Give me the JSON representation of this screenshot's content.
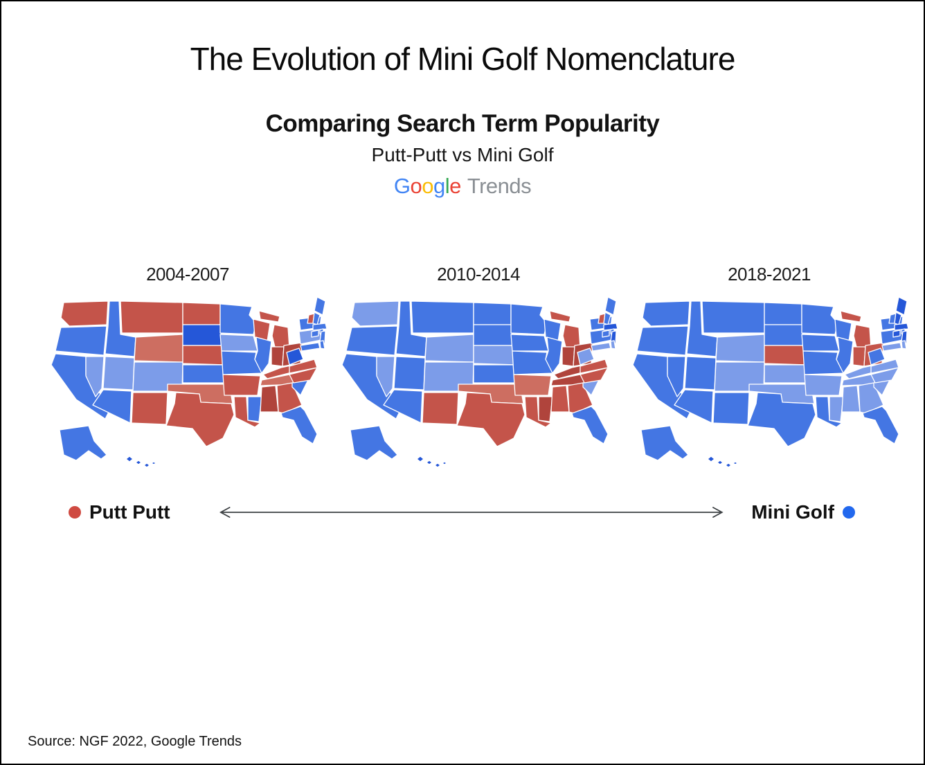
{
  "title": "The Evolution of Mini Golf Nomenclature",
  "subtitle": "Comparing Search Term Popularity",
  "subtitle2": "Putt-Putt vs Mini Golf",
  "logo": {
    "letters": [
      {
        "ch": "G",
        "color": "#4285F4"
      },
      {
        "ch": "o",
        "color": "#EA4335"
      },
      {
        "ch": "o",
        "color": "#FBBC05"
      },
      {
        "ch": "g",
        "color": "#4285F4"
      },
      {
        "ch": "l",
        "color": "#34A853"
      },
      {
        "ch": "e",
        "color": "#EA4335"
      }
    ],
    "suffix": "Trends",
    "suffix_color": "#8a8f94"
  },
  "legend": {
    "left_label": "Putt Putt",
    "left_color": "#cf4a41",
    "right_label": "Mini Golf",
    "right_color": "#2268ee",
    "arrow_color": "#3c4043"
  },
  "source": "Source: NGF 2022, Google Trends",
  "palette": {
    "red_dark": "#b0443c",
    "red": "#c4544a",
    "red_light": "#cd6e61",
    "blue_dark": "#2557d8",
    "blue": "#4476e3",
    "blue_light": "#7c9ce9",
    "state_border_color": "#ffffff"
  },
  "chart_data": {
    "type": "heatmap",
    "title": "Comparing Search Term Popularity",
    "subtitle": "Putt-Putt vs Mini Golf (Google Trends)",
    "value_scale": "red = Putt Putt dominant, blue = Mini Golf dominant; lighter/darker shades = weaker/stronger dominance",
    "legend": [
      {
        "label": "Putt Putt",
        "color_key": "red"
      },
      {
        "label": "Mini Golf",
        "color_key": "blue"
      }
    ],
    "maps": [
      {
        "label": "2004-2007",
        "states": {
          "WA": "red",
          "OR": "blue",
          "CA": "blue",
          "ID": "blue",
          "MT": "red",
          "WY": "red_light",
          "NV": "blue_light",
          "UT": "blue_light",
          "CO": "blue_light",
          "AZ": "blue",
          "NM": "red",
          "ND": "red",
          "SD": "blue_dark",
          "NE": "red",
          "KS": "blue",
          "OK": "red_light",
          "TX": "red",
          "MN": "blue",
          "IA": "blue_light",
          "MO": "blue",
          "AR": "red",
          "LA": "red",
          "WI": "red",
          "IL": "blue",
          "MI": "red",
          "IN": "red_dark",
          "OH": "red_dark",
          "KY": "red",
          "TN": "red_light",
          "MS": "blue",
          "AL": "red_dark",
          "GA": "red",
          "FL": "blue",
          "SC": "blue",
          "NC": "red",
          "VA": "red",
          "WV": "blue_dark",
          "PA": "blue_light",
          "NY": "blue",
          "ME": "blue",
          "VT": "red",
          "NH": "blue",
          "MA": "blue",
          "CT": "blue",
          "RI": "blue",
          "NJ": "blue",
          "MD": "blue",
          "DE": "blue",
          "AK": "blue",
          "HI": "blue_dark"
        }
      },
      {
        "label": "2010-2014",
        "states": {
          "WA": "blue_light",
          "OR": "blue",
          "CA": "blue",
          "ID": "blue",
          "MT": "blue",
          "WY": "blue_light",
          "NV": "blue_light",
          "UT": "blue",
          "CO": "blue_light",
          "AZ": "blue",
          "NM": "red",
          "ND": "blue",
          "SD": "blue",
          "NE": "blue_light",
          "KS": "blue",
          "OK": "red_light",
          "TX": "red",
          "MN": "blue",
          "IA": "blue",
          "MO": "blue",
          "AR": "red_light",
          "LA": "red",
          "WI": "blue",
          "IL": "blue",
          "MI": "red",
          "IN": "red_dark",
          "OH": "red_dark",
          "KY": "red_dark",
          "TN": "red_dark",
          "MS": "red_dark",
          "AL": "red",
          "GA": "red",
          "FL": "blue",
          "SC": "blue_light",
          "NC": "red",
          "VA": "red",
          "WV": "blue_light",
          "PA": "blue",
          "NY": "blue",
          "ME": "blue",
          "VT": "red",
          "NH": "blue",
          "MA": "blue_dark",
          "CT": "blue",
          "RI": "blue",
          "NJ": "blue_dark",
          "MD": "blue_light",
          "DE": "blue_light",
          "AK": "blue",
          "HI": "blue_dark"
        }
      },
      {
        "label": "2018-2021",
        "states": {
          "WA": "blue",
          "OR": "blue",
          "CA": "blue",
          "ID": "blue",
          "MT": "blue",
          "WY": "blue_light",
          "NV": "blue",
          "UT": "blue",
          "CO": "blue_light",
          "AZ": "blue",
          "NM": "blue",
          "ND": "blue",
          "SD": "blue",
          "NE": "red",
          "KS": "blue_light",
          "OK": "blue_light",
          "TX": "blue",
          "MN": "blue",
          "IA": "blue",
          "MO": "blue",
          "AR": "blue_light",
          "LA": "blue",
          "WI": "blue",
          "IL": "blue",
          "MI": "red",
          "IN": "red",
          "OH": "red",
          "KY": "blue_light",
          "TN": "blue_light",
          "MS": "blue_light",
          "AL": "blue_light",
          "GA": "blue_light",
          "FL": "blue",
          "SC": "blue_light",
          "NC": "blue_light",
          "VA": "blue_light",
          "WV": "blue",
          "PA": "blue",
          "NY": "blue",
          "ME": "blue_dark",
          "VT": "blue",
          "NH": "blue_dark",
          "MA": "blue_dark",
          "CT": "blue_dark",
          "RI": "blue",
          "NJ": "blue_dark",
          "MD": "blue_light",
          "DE": "blue_light",
          "AK": "blue",
          "HI": "blue_dark"
        }
      }
    ]
  }
}
